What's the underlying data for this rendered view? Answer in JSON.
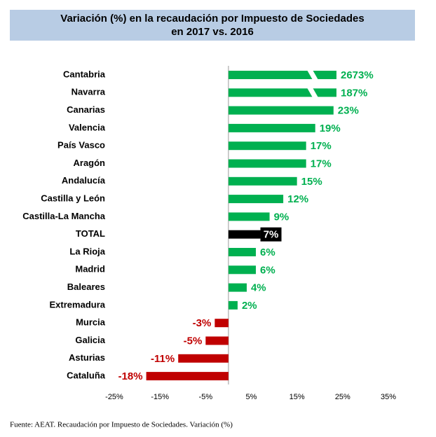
{
  "chart_data": {
    "type": "bar",
    "orientation": "horizontal",
    "title": [
      "Variación (%) en la recaudación por Impuesto de Sociedades",
      "en 2017 vs. 2016"
    ],
    "categories": [
      "Cantabria",
      "Navarra",
      "Canarias",
      "Valencia",
      "País Vasco",
      "Aragón",
      "Andalucía",
      "Castilla y León",
      "Castilla-La Mancha",
      "TOTAL",
      "La Rioja",
      "Madrid",
      "Baleares",
      "Extremadura",
      "Murcia",
      "Galicia",
      "Asturias",
      "Cataluña"
    ],
    "values": [
      2673,
      187,
      23,
      19,
      17,
      17,
      15,
      12,
      9,
      7,
      6,
      6,
      4,
      2,
      -3,
      -5,
      -11,
      -18
    ],
    "value_labels": [
      "2673%",
      "187%",
      "23%",
      "19%",
      "17%",
      "17%",
      "15%",
      "12%",
      "9%",
      "7%",
      "6%",
      "6%",
      "4%",
      "2%",
      "-3%",
      "-5%",
      "-11%",
      "-18%"
    ],
    "colors": [
      "#00b050",
      "#00b050",
      "#00b050",
      "#00b050",
      "#00b050",
      "#00b050",
      "#00b050",
      "#00b050",
      "#00b050",
      "#000000",
      "#00b050",
      "#00b050",
      "#00b050",
      "#00b050",
      "#c00000",
      "#c00000",
      "#c00000",
      "#c00000"
    ],
    "xlim": [
      -25,
      35
    ],
    "xticks": [
      {
        "value": -25,
        "label": "-25%"
      },
      {
        "value": -15,
        "label": "-15%"
      },
      {
        "value": -5,
        "label": "-5%"
      },
      {
        "value": 5,
        "label": "5%"
      },
      {
        "value": 15,
        "label": "15%"
      },
      {
        "value": 25,
        "label": "25%"
      },
      {
        "value": 35,
        "label": "35%"
      }
    ],
    "source": "Fuente: AEAT. Recaudación por Impuesto de Sociedades. Variación (%)"
  }
}
